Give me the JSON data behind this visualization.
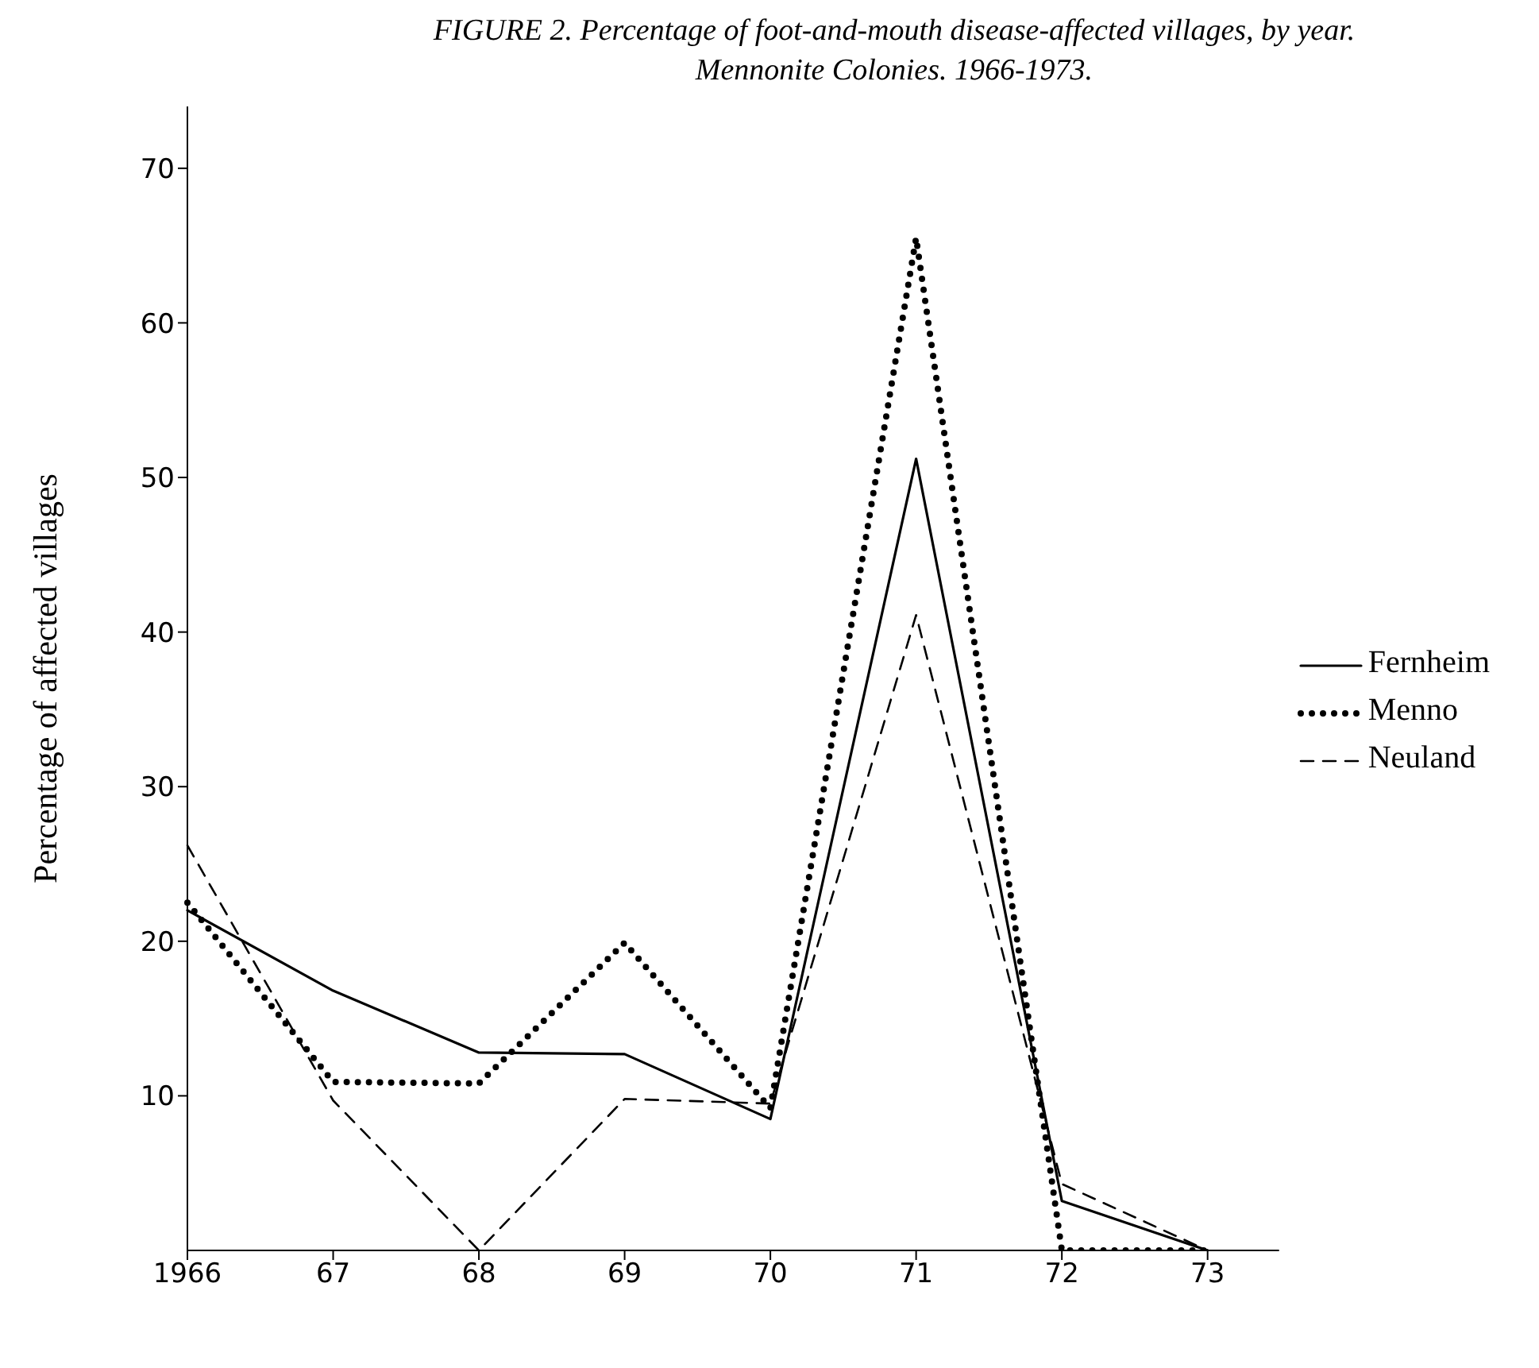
{
  "chart_data": {
    "type": "line",
    "title": "FIGURE 2. Percentage of foot-and-mouth disease-affected villages, by year. Mennonite Colonies. 1966-1973.",
    "ylabel": "Percentage of affected villages",
    "categories": [
      "1966",
      "67",
      "68",
      "69",
      "70",
      "71",
      "72",
      "73"
    ],
    "series": [
      {
        "name": "Fernheim",
        "color": "#000000",
        "line_style": "solid",
        "values": [
          22,
          16.8,
          12.8,
          12.7,
          8.5,
          51.2,
          3.2,
          0
        ]
      },
      {
        "name": "Menno",
        "color": "#000000",
        "line_style": "dotted",
        "values": [
          22.5,
          10.9,
          10.8,
          19.9,
          9.2,
          65.5,
          0,
          0
        ]
      },
      {
        "name": "Neuland",
        "color": "#000000",
        "line_style": "dashed",
        "values": [
          26.2,
          9.7,
          0,
          9.8,
          9.5,
          41.1,
          4.3,
          0
        ]
      }
    ],
    "ylim": [
      0,
      74
    ],
    "yticks": [
      10,
      20,
      30,
      40,
      50,
      60,
      70
    ],
    "legend": "right",
    "marker": "none"
  }
}
